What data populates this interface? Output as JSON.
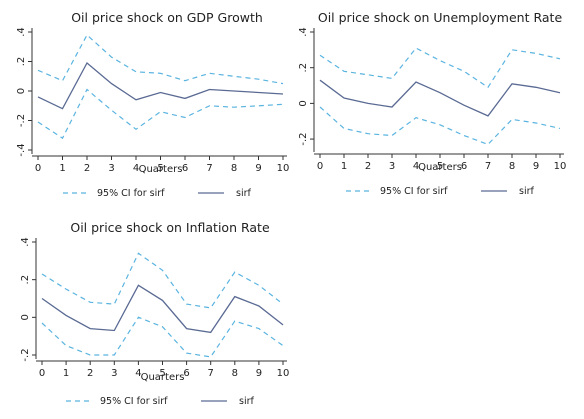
{
  "chart_data": [
    {
      "type": "line",
      "title": "Oil price shock on GDP Growth",
      "xlabel": "Quarters",
      "ylabel": "",
      "x": [
        0,
        1,
        2,
        3,
        4,
        5,
        6,
        7,
        8,
        9,
        10
      ],
      "ylim": [
        -0.4,
        0.4
      ],
      "yticks": [
        -0.4,
        -0.2,
        0,
        0.2,
        0.4
      ],
      "ytick_labels": [
        "-.4",
        "-.2",
        "0",
        ".2",
        ".4"
      ],
      "series": [
        {
          "name": "95% CI for sirf",
          "role": "upper",
          "values": [
            0.14,
            0.07,
            0.38,
            0.23,
            0.13,
            0.12,
            0.07,
            0.12,
            0.1,
            0.08,
            0.05
          ]
        },
        {
          "name": "95% CI for sirf",
          "role": "lower",
          "values": [
            -0.21,
            -0.32,
            0.01,
            -0.13,
            -0.26,
            -0.14,
            -0.18,
            -0.1,
            -0.11,
            -0.1,
            -0.09
          ]
        },
        {
          "name": "sirf",
          "role": "estimate",
          "values": [
            -0.04,
            -0.12,
            0.19,
            0.05,
            -0.06,
            -0.01,
            -0.05,
            0.01,
            0.0,
            -0.01,
            -0.02
          ]
        }
      ],
      "legend": [
        "95% CI for sirf",
        "sirf"
      ],
      "legend_position": "bottom"
    },
    {
      "type": "line",
      "title": "Oil price shock on Unemployment Rate",
      "xlabel": "Quarters",
      "ylabel": "",
      "x": [
        0,
        1,
        2,
        3,
        4,
        5,
        6,
        7,
        8,
        9,
        10
      ],
      "ylim": [
        -0.25,
        0.4
      ],
      "yticks": [
        -0.2,
        0,
        0.2,
        0.4
      ],
      "ytick_labels": [
        "-.2",
        "0",
        ".2",
        ".4"
      ],
      "series": [
        {
          "name": "95% CI for sirf",
          "role": "upper",
          "values": [
            0.27,
            0.18,
            0.16,
            0.14,
            0.31,
            0.24,
            0.18,
            0.09,
            0.3,
            0.28,
            0.25
          ]
        },
        {
          "name": "95% CI for sirf",
          "role": "lower",
          "values": [
            -0.02,
            -0.14,
            -0.17,
            -0.18,
            -0.08,
            -0.12,
            -0.18,
            -0.23,
            -0.09,
            -0.11,
            -0.14
          ]
        },
        {
          "name": "sirf",
          "role": "estimate",
          "values": [
            0.13,
            0.03,
            0.0,
            -0.02,
            0.12,
            0.06,
            -0.01,
            -0.07,
            0.11,
            0.09,
            0.06
          ]
        }
      ],
      "legend": [
        "95% CI for sirf",
        "sirf"
      ],
      "legend_position": "bottom"
    },
    {
      "type": "line",
      "title": "Oil price shock on Inflation Rate",
      "xlabel": "Quarters",
      "ylabel": "",
      "x": [
        0,
        1,
        2,
        3,
        4,
        5,
        6,
        7,
        8,
        9,
        10
      ],
      "ylim": [
        -0.2,
        0.4
      ],
      "yticks": [
        -0.2,
        0,
        0.2,
        0.4
      ],
      "ytick_labels": [
        "-.2",
        "0",
        ".2",
        ".4"
      ],
      "series": [
        {
          "name": "95% CI for sirf",
          "role": "upper",
          "values": [
            0.23,
            0.15,
            0.08,
            0.07,
            0.34,
            0.25,
            0.07,
            0.05,
            0.24,
            0.17,
            0.07
          ]
        },
        {
          "name": "95% CI for sirf",
          "role": "lower",
          "values": [
            -0.03,
            -0.15,
            -0.2,
            -0.2,
            0.0,
            -0.05,
            -0.19,
            -0.21,
            -0.02,
            -0.06,
            -0.15
          ]
        },
        {
          "name": "sirf",
          "role": "estimate",
          "values": [
            0.1,
            0.01,
            -0.06,
            -0.07,
            0.17,
            0.09,
            -0.06,
            -0.08,
            0.11,
            0.06,
            -0.04
          ]
        }
      ],
      "legend": [
        "95% CI for sirf",
        "sirf"
      ],
      "legend_position": "bottom"
    }
  ]
}
